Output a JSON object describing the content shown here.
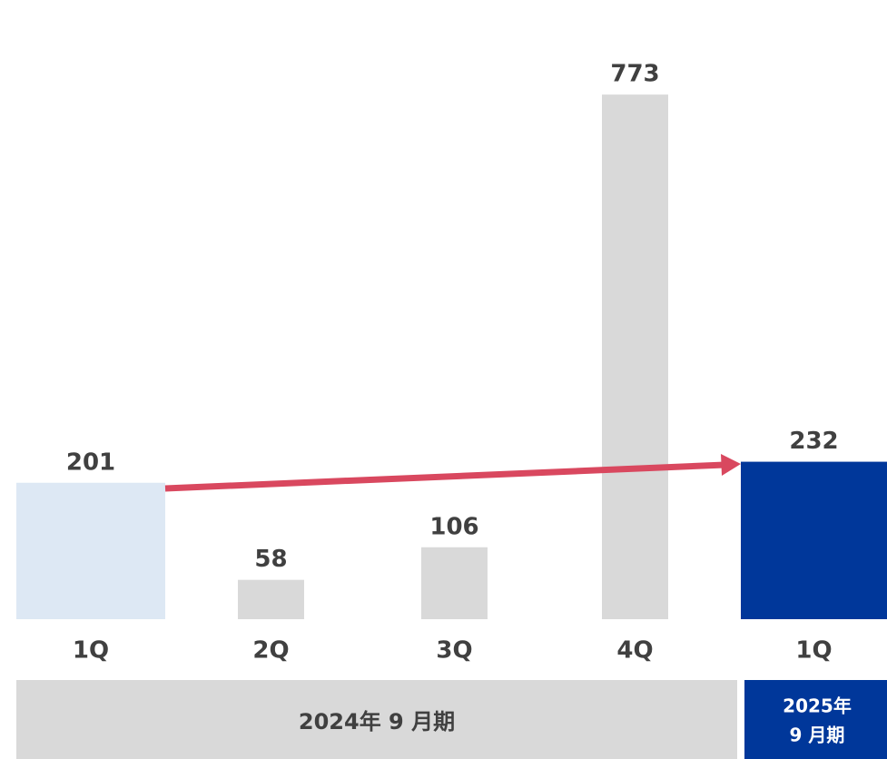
{
  "chart_data": {
    "type": "bar",
    "categories": [
      "1Q",
      "2Q",
      "3Q",
      "4Q",
      "1Q"
    ],
    "values": [
      201,
      58,
      106,
      773,
      232
    ],
    "colors": [
      "#dde8f4",
      "#d9d9d9",
      "#d9d9d9",
      "#d9d9d9",
      "#00379a"
    ],
    "ylim": [
      0,
      800
    ],
    "groups": [
      {
        "label": "2024年 9 月期"
      },
      {
        "label": [
          "2025年",
          "9 月期"
        ]
      }
    ]
  }
}
